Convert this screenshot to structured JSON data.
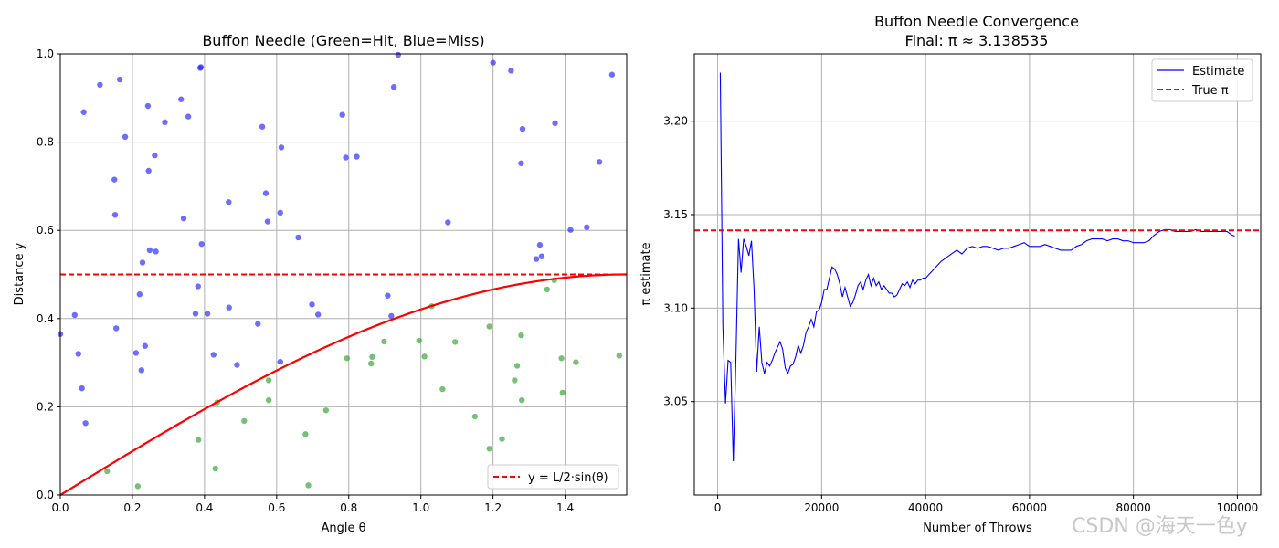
{
  "watermark": "CSDN @海天一色y",
  "chart_data": [
    {
      "type": "scatter",
      "title": "Buffon Needle (Green=Hit, Blue=Miss)",
      "xlabel": "Angle θ",
      "ylabel": "Distance y",
      "xlim": [
        0,
        1.5708
      ],
      "ylim": [
        0,
        1.0
      ],
      "xticks": [
        "0.0",
        "0.2",
        "0.4",
        "0.6",
        "0.8",
        "1.0",
        "1.2",
        "1.4"
      ],
      "yticks": [
        "0.0",
        "0.2",
        "0.4",
        "0.6",
        "0.8",
        "1.0"
      ],
      "grid": true,
      "legend_position": "lower-right",
      "colors": {
        "hit": "#2ca02c",
        "miss": "#1f1fff",
        "curve": "#ff0000"
      },
      "hline": {
        "y": 0.5,
        "style": "dashed",
        "color": "#ff0000"
      },
      "curve": {
        "label": "y = L/2·sin(θ)",
        "amplitude": 0.5
      },
      "series": [
        {
          "name": "Miss",
          "points": [
            [
              0.0,
              0.365
            ],
            [
              0.04,
              0.408
            ],
            [
              0.05,
              0.32
            ],
            [
              0.06,
              0.242
            ],
            [
              0.065,
              0.868
            ],
            [
              0.07,
              0.163
            ],
            [
              0.11,
              0.93
            ],
            [
              0.15,
              0.715
            ],
            [
              0.152,
              0.635
            ],
            [
              0.155,
              0.378
            ],
            [
              0.165,
              0.942
            ],
            [
              0.18,
              0.812
            ],
            [
              0.21,
              0.322
            ],
            [
              0.22,
              0.455
            ],
            [
              0.225,
              0.283
            ],
            [
              0.228,
              0.527
            ],
            [
              0.235,
              0.338
            ],
            [
              0.243,
              0.882
            ],
            [
              0.245,
              0.735
            ],
            [
              0.248,
              0.555
            ],
            [
              0.262,
              0.77
            ],
            [
              0.265,
              0.552
            ],
            [
              0.29,
              0.845
            ],
            [
              0.335,
              0.897
            ],
            [
              0.342,
              0.627
            ],
            [
              0.355,
              0.858
            ],
            [
              0.375,
              0.411
            ],
            [
              0.382,
              0.473
            ],
            [
              0.388,
              0.968
            ],
            [
              0.39,
              0.97
            ],
            [
              0.392,
              0.569
            ],
            [
              0.408,
              0.411
            ],
            [
              0.425,
              0.318
            ],
            [
              0.467,
              0.664
            ],
            [
              0.468,
              0.425
            ],
            [
              0.49,
              0.295
            ],
            [
              0.548,
              0.388
            ],
            [
              0.56,
              0.835
            ],
            [
              0.57,
              0.684
            ],
            [
              0.575,
              0.62
            ],
            [
              0.61,
              0.302
            ],
            [
              0.61,
              0.64
            ],
            [
              0.613,
              0.788
            ],
            [
              0.66,
              0.584
            ],
            [
              0.698,
              0.432
            ],
            [
              0.715,
              0.409
            ],
            [
              0.782,
              0.862
            ],
            [
              0.792,
              0.765
            ],
            [
              0.822,
              0.767
            ],
            [
              0.908,
              0.452
            ],
            [
              0.918,
              0.406
            ],
            [
              0.925,
              0.925
            ],
            [
              0.937,
              0.998
            ],
            [
              1.075,
              0.618
            ],
            [
              1.2,
              0.98
            ],
            [
              1.25,
              0.962
            ],
            [
              1.278,
              0.752
            ],
            [
              1.282,
              0.83
            ],
            [
              1.32,
              0.535
            ],
            [
              1.33,
              0.567
            ],
            [
              1.335,
              0.541
            ],
            [
              1.372,
              0.843
            ],
            [
              1.415,
              0.601
            ],
            [
              1.46,
              0.607
            ],
            [
              1.495,
              0.755
            ],
            [
              1.53,
              0.953
            ]
          ]
        },
        {
          "name": "Hit",
          "points": [
            [
              0.13,
              0.054
            ],
            [
              0.215,
              0.02
            ],
            [
              0.383,
              0.125
            ],
            [
              0.43,
              0.06
            ],
            [
              0.435,
              0.21
            ],
            [
              0.51,
              0.168
            ],
            [
              0.578,
              0.26
            ],
            [
              0.578,
              0.215
            ],
            [
              0.68,
              0.138
            ],
            [
              0.688,
              0.022
            ],
            [
              0.737,
              0.192
            ],
            [
              0.795,
              0.31
            ],
            [
              0.862,
              0.298
            ],
            [
              0.865,
              0.313
            ],
            [
              0.898,
              0.348
            ],
            [
              0.995,
              0.35
            ],
            [
              1.01,
              0.314
            ],
            [
              1.03,
              0.428
            ],
            [
              1.06,
              0.24
            ],
            [
              1.095,
              0.347
            ],
            [
              1.15,
              0.178
            ],
            [
              1.19,
              0.105
            ],
            [
              1.19,
              0.382
            ],
            [
              1.225,
              0.127
            ],
            [
              1.26,
              0.26
            ],
            [
              1.267,
              0.293
            ],
            [
              1.278,
              0.362
            ],
            [
              1.28,
              0.215
            ],
            [
              1.35,
              0.466
            ],
            [
              1.37,
              0.487
            ],
            [
              1.39,
              0.31
            ],
            [
              1.393,
              0.232
            ],
            [
              1.43,
              0.301
            ],
            [
              1.55,
              0.316
            ]
          ]
        }
      ]
    },
    {
      "type": "line",
      "title": "Buffon Needle Convergence",
      "subtitle": "Final: π ≈ 3.138535",
      "xlabel": "Number of Throws",
      "ylabel": "π estimate",
      "xlim": [
        -4500,
        104500
      ],
      "ylim": [
        3.0,
        3.236
      ],
      "xticks": [
        0,
        20000,
        40000,
        60000,
        80000,
        100000
      ],
      "yticks": [
        3.05,
        3.1,
        3.15,
        3.2
      ],
      "grid": true,
      "legend_position": "top-right",
      "true_pi": {
        "name": "True π",
        "value": 3.14159,
        "style": "dashed",
        "color": "#ff0000"
      },
      "series": [
        {
          "name": "Estimate",
          "color": "#0000ff",
          "x": [
            500,
            1000,
            1500,
            2000,
            2500,
            3000,
            3500,
            4000,
            4500,
            5000,
            5500,
            6000,
            6500,
            7000,
            7500,
            8000,
            8500,
            9000,
            9500,
            10000,
            10500,
            11000,
            11500,
            12000,
            12500,
            13000,
            13500,
            14000,
            14500,
            15000,
            15500,
            16000,
            16500,
            17000,
            17500,
            18000,
            18500,
            19000,
            19500,
            20000,
            20500,
            21000,
            21500,
            22000,
            22500,
            23000,
            23500,
            24000,
            24500,
            25000,
            25500,
            26000,
            26500,
            27000,
            27500,
            28000,
            28500,
            29000,
            29500,
            30000,
            30500,
            31000,
            31500,
            32000,
            32500,
            33000,
            33500,
            34000,
            34500,
            35000,
            35500,
            36000,
            36500,
            37000,
            37500,
            38000,
            38500,
            39000,
            39500,
            40000,
            41000,
            42000,
            43000,
            44000,
            45000,
            46000,
            47000,
            48000,
            49000,
            50000,
            51000,
            52000,
            53000,
            54000,
            55000,
            56000,
            57000,
            58000,
            59000,
            60000,
            61000,
            62000,
            63000,
            64000,
            65000,
            66000,
            67000,
            68000,
            69000,
            70000,
            71000,
            72000,
            73000,
            74000,
            75000,
            76000,
            77000,
            78000,
            79000,
            80000,
            81000,
            82000,
            83000,
            84000,
            85000,
            86000,
            87000,
            88000,
            89000,
            90000,
            91000,
            92000,
            93000,
            94000,
            95000,
            96000,
            97000,
            98000,
            99000,
            99500
          ],
          "y": [
            3.226,
            3.09,
            3.049,
            3.072,
            3.071,
            3.018,
            3.072,
            3.137,
            3.119,
            3.137,
            3.133,
            3.128,
            3.136,
            3.11,
            3.066,
            3.09,
            3.071,
            3.065,
            3.071,
            3.069,
            3.072,
            3.076,
            3.079,
            3.082,
            3.078,
            3.068,
            3.065,
            3.069,
            3.07,
            3.074,
            3.08,
            3.076,
            3.08,
            3.087,
            3.09,
            3.094,
            3.09,
            3.098,
            3.099,
            3.103,
            3.11,
            3.11,
            3.116,
            3.122,
            3.121,
            3.118,
            3.113,
            3.106,
            3.111,
            3.106,
            3.101,
            3.103,
            3.107,
            3.112,
            3.114,
            3.11,
            3.115,
            3.118,
            3.112,
            3.116,
            3.112,
            3.114,
            3.11,
            3.112,
            3.11,
            3.108,
            3.108,
            3.106,
            3.107,
            3.11,
            3.113,
            3.112,
            3.114,
            3.111,
            3.115,
            3.113,
            3.115,
            3.115,
            3.116,
            3.116,
            3.119,
            3.122,
            3.125,
            3.127,
            3.129,
            3.131,
            3.129,
            3.132,
            3.133,
            3.132,
            3.133,
            3.133,
            3.132,
            3.131,
            3.132,
            3.132,
            3.133,
            3.134,
            3.135,
            3.133,
            3.133,
            3.133,
            3.134,
            3.133,
            3.132,
            3.131,
            3.131,
            3.131,
            3.133,
            3.134,
            3.136,
            3.137,
            3.137,
            3.137,
            3.136,
            3.137,
            3.137,
            3.136,
            3.136,
            3.135,
            3.135,
            3.135,
            3.136,
            3.139,
            3.141,
            3.142,
            3.142,
            3.141,
            3.141,
            3.141,
            3.141,
            3.142,
            3.141,
            3.141,
            3.141,
            3.141,
            3.141,
            3.141,
            3.139,
            3.1385
          ]
        }
      ]
    }
  ]
}
